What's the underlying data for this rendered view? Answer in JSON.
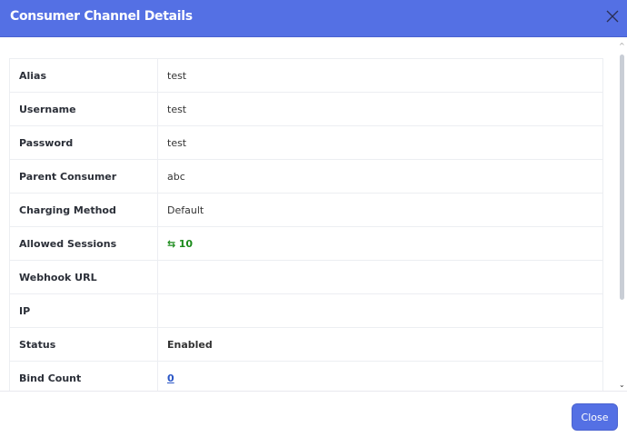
{
  "header": {
    "title": "Consumer Channel Details"
  },
  "rows": [
    {
      "label": "Alias",
      "value": "test"
    },
    {
      "label": "Username",
      "value": "test"
    },
    {
      "label": "Password",
      "value": "test"
    },
    {
      "label": "Parent Consumer",
      "value": "abc"
    },
    {
      "label": "Charging Method",
      "value": "Default"
    },
    {
      "label": "Allowed Sessions",
      "value": "10",
      "icon": "repeat-icon"
    },
    {
      "label": "Webhook URL",
      "value": ""
    },
    {
      "label": "IP",
      "value": ""
    },
    {
      "label": "Status",
      "value": "Enabled"
    },
    {
      "label": "Bind Count",
      "value": "0"
    }
  ],
  "footer": {
    "close_label": "Close"
  },
  "colors": {
    "accent": "#5470e4",
    "sessions": "#1a8a1a",
    "link": "#2a56c6"
  }
}
